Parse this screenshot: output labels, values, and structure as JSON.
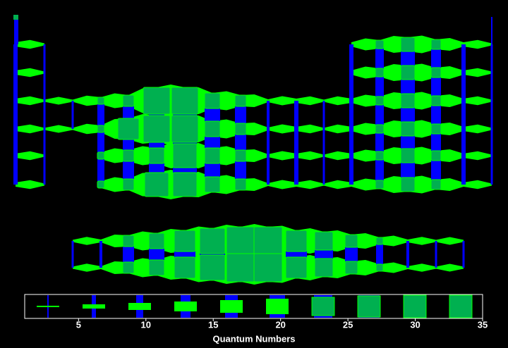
{
  "chart_data": {
    "type": "custom",
    "xlabel": "Quantum Numbers",
    "xlim": [
      1,
      35
    ],
    "xticks": [
      5,
      10,
      15,
      20,
      25,
      30,
      35
    ]
  }
}
